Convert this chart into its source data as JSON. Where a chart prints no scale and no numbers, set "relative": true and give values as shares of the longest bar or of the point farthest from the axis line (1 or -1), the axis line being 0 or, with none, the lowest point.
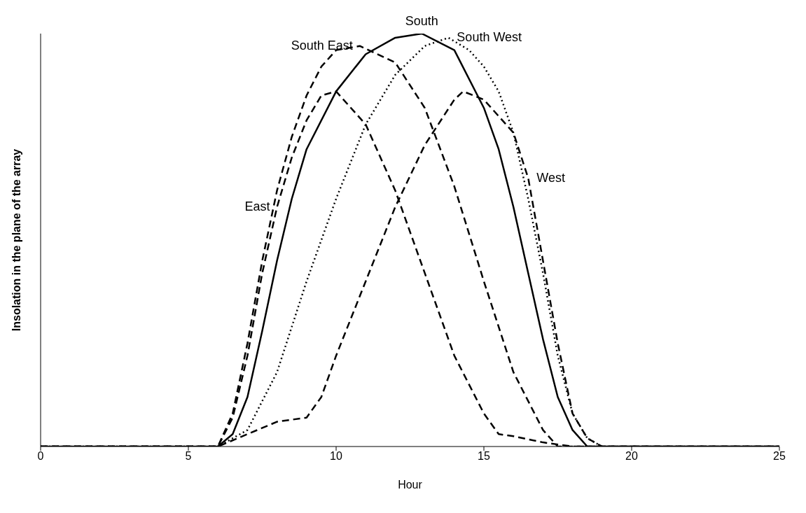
{
  "chart_data": {
    "type": "line",
    "relative": true,
    "xlabel": "Hour",
    "ylabel": "Insolation in the plane of the array",
    "xlim": [
      0,
      25
    ],
    "xticks": [
      0,
      5,
      10,
      15,
      20,
      25
    ],
    "grid": false,
    "legend": false,
    "marker": "none",
    "series": [
      {
        "name": "East",
        "color": "#000000",
        "line_style": "dashed",
        "x": [
          0,
          6,
          6.5,
          7,
          7.5,
          8,
          8.5,
          9,
          9.5,
          10,
          11,
          12,
          13,
          14,
          15,
          15.5,
          16,
          17,
          18,
          25
        ],
        "values": [
          0,
          0,
          0.07,
          0.22,
          0.42,
          0.58,
          0.7,
          0.79,
          0.85,
          0.86,
          0.78,
          0.62,
          0.42,
          0.22,
          0.08,
          0.03,
          0.025,
          0.01,
          0,
          0
        ]
      },
      {
        "name": "South East",
        "color": "#000000",
        "line_style": "dashed",
        "x": [
          0,
          6,
          6.5,
          7,
          7.5,
          8,
          8.5,
          9,
          9.5,
          10,
          10.8,
          12,
          13,
          14,
          15,
          16,
          17,
          17.5,
          25
        ],
        "values": [
          0,
          0,
          0.08,
          0.25,
          0.45,
          0.62,
          0.75,
          0.85,
          0.92,
          0.96,
          0.97,
          0.93,
          0.82,
          0.63,
          0.4,
          0.18,
          0.04,
          0,
          0
        ]
      },
      {
        "name": "South",
        "color": "#000000",
        "line_style": "solid",
        "x": [
          0,
          6,
          6.5,
          7,
          7.5,
          8,
          8.5,
          9,
          10,
          11,
          12,
          12.9,
          14,
          15,
          15.5,
          16,
          16.5,
          17,
          17.5,
          18,
          18.5,
          25
        ],
        "values": [
          0,
          0,
          0.03,
          0.12,
          0.28,
          0.45,
          0.6,
          0.72,
          0.86,
          0.95,
          0.99,
          1,
          0.96,
          0.82,
          0.72,
          0.58,
          0.42,
          0.26,
          0.12,
          0.04,
          0,
          0
        ]
      },
      {
        "name": "South West",
        "color": "#000000",
        "line_style": "dotted",
        "x": [
          0,
          6,
          7,
          8,
          9,
          10,
          11,
          12,
          13,
          13.8,
          14.5,
          15,
          15.5,
          16,
          16.5,
          17,
          17.5,
          18,
          18.5,
          19,
          25
        ],
        "values": [
          0,
          0,
          0.04,
          0.18,
          0.4,
          0.6,
          0.78,
          0.9,
          0.97,
          0.99,
          0.96,
          0.92,
          0.86,
          0.76,
          0.6,
          0.42,
          0.22,
          0.08,
          0.02,
          0,
          0
        ]
      },
      {
        "name": "West",
        "color": "#000000",
        "line_style": "dashed",
        "x": [
          0,
          6,
          7,
          8,
          9,
          9.5,
          10,
          11,
          12,
          13,
          14,
          14.3,
          15,
          16,
          16.5,
          17,
          17.5,
          18,
          18.5,
          19,
          25
        ],
        "values": [
          0,
          0,
          0.03,
          0.06,
          0.07,
          0.12,
          0.22,
          0.4,
          0.58,
          0.73,
          0.84,
          0.86,
          0.84,
          0.76,
          0.65,
          0.45,
          0.25,
          0.08,
          0.02,
          0,
          0
        ]
      }
    ]
  }
}
